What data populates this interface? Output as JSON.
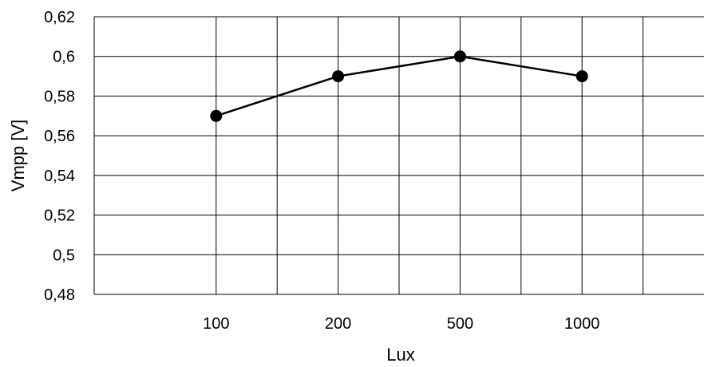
{
  "chart_data": {
    "type": "line",
    "categories": [
      "100",
      "200",
      "500",
      "1000"
    ],
    "series": [
      {
        "values": [
          0.57,
          0.59,
          0.6,
          0.59
        ]
      }
    ],
    "xlabel": "Lux",
    "ylabel": "Vmpp [V]",
    "ylim": [
      0.48,
      0.62
    ],
    "yticks": [
      0.48,
      0.5,
      0.52,
      0.54,
      0.56,
      0.58,
      0.6,
      0.62
    ],
    "ytick_labels": [
      "0,48",
      "0,5",
      "0,52",
      "0,54",
      "0,56",
      "0,58",
      "0,6",
      "0,62"
    ],
    "grid": true,
    "legend": "none",
    "line_color": "#000000",
    "marker_color": "#000000"
  }
}
